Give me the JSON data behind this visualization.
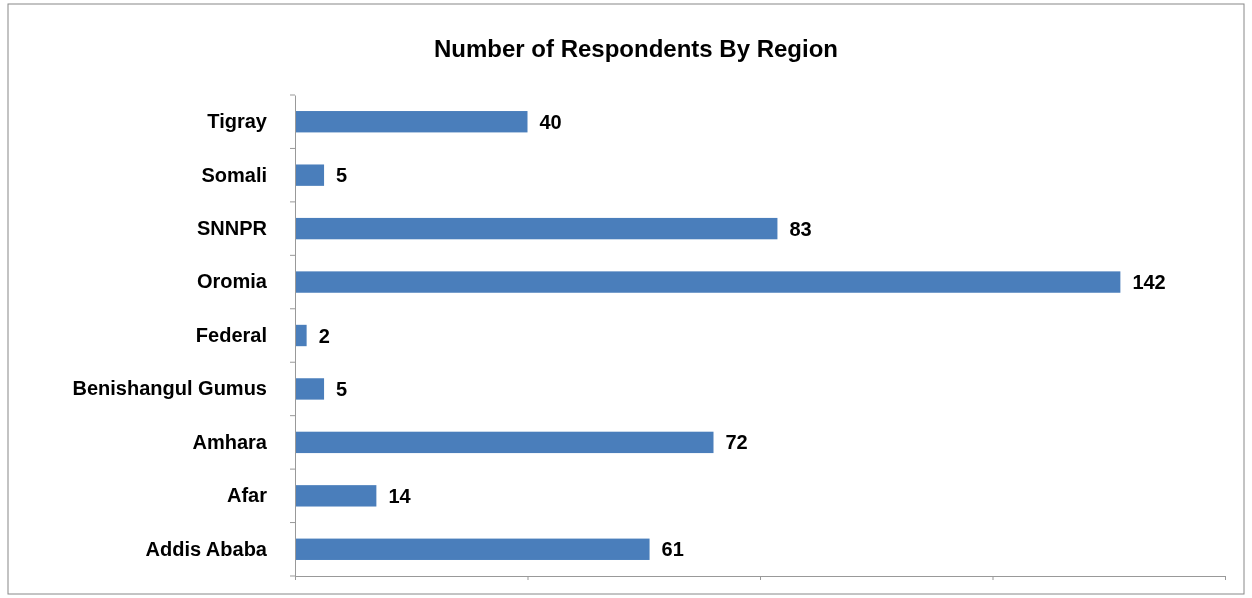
{
  "chart_data": {
    "type": "bar",
    "orientation": "horizontal",
    "title": "Number of Respondents By Region",
    "categories": [
      "Tigray",
      "Somali",
      "SNNPR",
      "Oromia",
      "Federal",
      "Benishangul Gumus",
      "Amhara",
      "Afar",
      "Addis Ababa"
    ],
    "values": [
      40,
      5,
      83,
      142,
      2,
      5,
      72,
      14,
      61
    ],
    "color": "#4a7ebb",
    "data_labels": true,
    "xlim": [
      0,
      160
    ],
    "xticks": [
      {
        "value": 0,
        "label": null
      },
      {
        "value": 40,
        "label": null
      },
      {
        "value": 80,
        "label": null
      },
      {
        "value": 120,
        "label": null
      },
      {
        "value": 160,
        "label": null
      }
    ],
    "tick_labels": "y",
    "grid": false
  }
}
